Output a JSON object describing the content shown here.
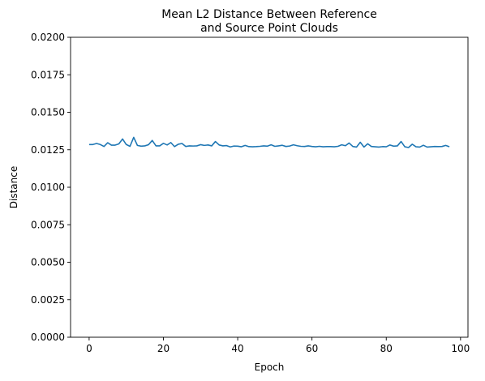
{
  "chart_data": {
    "type": "line",
    "title_lines": [
      "Mean L2 Distance Between Reference",
      "and Source Point Clouds"
    ],
    "xlabel": "Epoch",
    "ylabel": "Distance",
    "xlim": [
      -5,
      102
    ],
    "ylim": [
      0,
      0.02
    ],
    "x_ticks": [
      0,
      20,
      40,
      60,
      80,
      100
    ],
    "y_ticks": [
      0.0,
      0.0025,
      0.005,
      0.0075,
      0.01,
      0.0125,
      0.015,
      0.0175,
      0.02
    ],
    "x_tick_labels": [
      "0",
      "20",
      "40",
      "60",
      "80",
      "100"
    ],
    "y_tick_labels": [
      "0.0000",
      "0.0025",
      "0.0050",
      "0.0075",
      "0.0100",
      "0.0125",
      "0.0150",
      "0.0175",
      "0.0200"
    ],
    "grid": false,
    "legend": "none",
    "series": [
      {
        "color": "#1f77b4",
        "x": [
          0,
          1,
          2,
          3,
          4,
          5,
          6,
          7,
          8,
          9,
          10,
          11,
          12,
          13,
          14,
          15,
          16,
          17,
          18,
          19,
          20,
          21,
          22,
          23,
          24,
          25,
          26,
          27,
          28,
          29,
          30,
          31,
          32,
          33,
          34,
          35,
          36,
          37,
          38,
          39,
          40,
          41,
          42,
          43,
          44,
          45,
          46,
          47,
          48,
          49,
          50,
          51,
          52,
          53,
          54,
          55,
          56,
          57,
          58,
          59,
          60,
          61,
          62,
          63,
          64,
          65,
          66,
          67,
          68,
          69,
          70,
          71,
          72,
          73,
          74,
          75,
          76,
          77,
          78,
          79,
          80,
          81,
          82,
          83,
          84,
          85,
          86,
          87,
          88,
          89,
          90,
          91,
          92,
          93,
          94,
          95,
          96,
          97
        ],
        "y": [
          0.01285,
          0.01285,
          0.01292,
          0.01285,
          0.01272,
          0.01297,
          0.01281,
          0.01281,
          0.01289,
          0.01322,
          0.01285,
          0.01273,
          0.01333,
          0.01279,
          0.01274,
          0.01276,
          0.01284,
          0.01312,
          0.01276,
          0.01276,
          0.01293,
          0.01282,
          0.01298,
          0.01271,
          0.01287,
          0.01292,
          0.01272,
          0.01276,
          0.01275,
          0.01276,
          0.01284,
          0.01279,
          0.01282,
          0.01276,
          0.01305,
          0.01282,
          0.01276,
          0.01278,
          0.01269,
          0.01275,
          0.01274,
          0.0127,
          0.01279,
          0.01271,
          0.0127,
          0.01271,
          0.01273,
          0.01276,
          0.01274,
          0.01283,
          0.01273,
          0.01276,
          0.0128,
          0.01272,
          0.01275,
          0.01283,
          0.01277,
          0.01273,
          0.01272,
          0.01276,
          0.01272,
          0.0127,
          0.01273,
          0.0127,
          0.01271,
          0.01271,
          0.0127,
          0.01273,
          0.01283,
          0.01277,
          0.01295,
          0.01272,
          0.01268,
          0.013,
          0.01268,
          0.0129,
          0.01272,
          0.0127,
          0.01268,
          0.01271,
          0.0127,
          0.01282,
          0.01274,
          0.01276,
          0.01305,
          0.0127,
          0.01265,
          0.01287,
          0.0127,
          0.01268,
          0.0128,
          0.01268,
          0.0127,
          0.01272,
          0.01271,
          0.01272,
          0.01279,
          0.0127
        ]
      }
    ]
  }
}
